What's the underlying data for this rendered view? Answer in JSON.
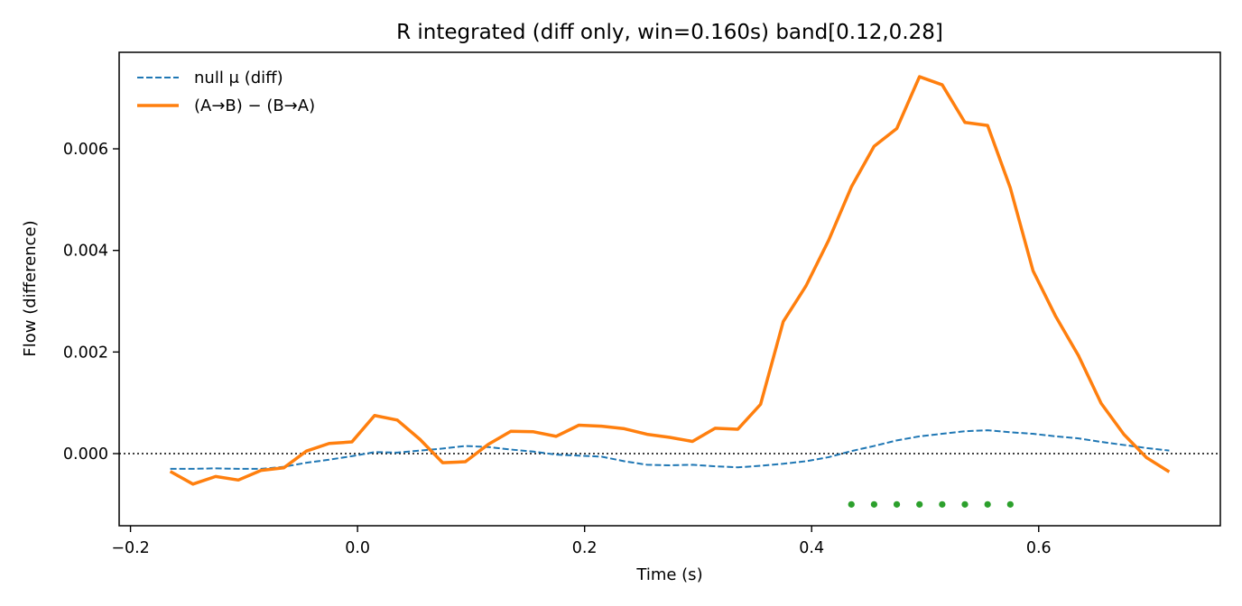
{
  "chart_data": {
    "type": "line",
    "title": "R integrated (diff only, win=0.160s)   band[0.12,0.28]",
    "xlabel": "Time (s)",
    "ylabel": "Flow (difference)",
    "xlim": [
      -0.21,
      0.76
    ],
    "ylim": [
      -0.00142,
      0.0079
    ],
    "x_ticks": [
      -0.2,
      0.0,
      0.2,
      0.4,
      0.6
    ],
    "x_tick_labels": [
      "−0.2",
      "0.0",
      "0.2",
      "0.4",
      "0.6"
    ],
    "y_ticks": [
      0.0,
      0.002,
      0.004,
      0.006
    ],
    "y_tick_labels": [
      "0.000",
      "0.002",
      "0.004",
      "0.006"
    ],
    "grid": false,
    "legend_position": "top-left",
    "reference_line": {
      "y": 0.0,
      "style": "dotted",
      "color": "#000000"
    },
    "series": [
      {
        "name": "null μ (diff)",
        "style": "dashed",
        "color": "#1f77b4",
        "x": [
          -0.165,
          -0.145,
          -0.125,
          -0.105,
          -0.085,
          -0.065,
          -0.045,
          -0.025,
          -0.005,
          0.015,
          0.035,
          0.055,
          0.075,
          0.095,
          0.115,
          0.135,
          0.155,
          0.175,
          0.195,
          0.215,
          0.235,
          0.255,
          0.275,
          0.295,
          0.315,
          0.335,
          0.355,
          0.375,
          0.395,
          0.415,
          0.435,
          0.455,
          0.475,
          0.495,
          0.515,
          0.535,
          0.555,
          0.575,
          0.595,
          0.615,
          0.635,
          0.655,
          0.675,
          0.695,
          0.715
        ],
        "y": [
          -0.0003,
          -0.0003,
          -0.00029,
          -0.0003,
          -0.0003,
          -0.00026,
          -0.00018,
          -0.00012,
          -5e-05,
          3e-05,
          2e-05,
          6e-05,
          0.0001,
          0.00015,
          0.00013,
          8e-05,
          4e-05,
          -2e-05,
          -4e-05,
          -6e-05,
          -0.00015,
          -0.00022,
          -0.00023,
          -0.00022,
          -0.00025,
          -0.00027,
          -0.00024,
          -0.0002,
          -0.00015,
          -7e-05,
          5e-05,
          0.00015,
          0.00026,
          0.00034,
          0.00039,
          0.00044,
          0.00046,
          0.00042,
          0.00039,
          0.00034,
          0.0003,
          0.00023,
          0.00017,
          0.00011,
          6e-05
        ]
      },
      {
        "name": "(A→B) − (B→A)",
        "style": "solid",
        "color": "#ff7f0e",
        "x": [
          -0.165,
          -0.145,
          -0.125,
          -0.105,
          -0.085,
          -0.065,
          -0.045,
          -0.025,
          -0.005,
          0.015,
          0.035,
          0.055,
          0.075,
          0.095,
          0.115,
          0.135,
          0.155,
          0.175,
          0.195,
          0.215,
          0.235,
          0.255,
          0.275,
          0.295,
          0.315,
          0.335,
          0.355,
          0.375,
          0.395,
          0.415,
          0.435,
          0.455,
          0.475,
          0.495,
          0.515,
          0.535,
          0.555,
          0.575,
          0.595,
          0.615,
          0.635,
          0.655,
          0.675,
          0.695,
          0.715
        ],
        "y": [
          -0.00035,
          -0.0006,
          -0.00045,
          -0.00052,
          -0.00033,
          -0.00028,
          5e-05,
          0.0002,
          0.00023,
          0.00075,
          0.00066,
          0.00028,
          -0.00018,
          -0.00016,
          0.00018,
          0.00044,
          0.00043,
          0.00034,
          0.00056,
          0.00054,
          0.00049,
          0.00038,
          0.00032,
          0.00024,
          0.0005,
          0.00048,
          0.00097,
          0.0026,
          0.0033,
          0.0042,
          0.00525,
          0.00605,
          0.0064,
          0.00742,
          0.00726,
          0.00652,
          0.00646,
          0.00523,
          0.0036,
          0.0027,
          0.00193,
          0.00099,
          0.00038,
          -8e-05,
          -0.00036
        ]
      },
      {
        "type": "scatter",
        "color": "#2ca02c",
        "x": [
          0.435,
          0.455,
          0.475,
          0.495,
          0.515,
          0.535,
          0.555,
          0.575
        ],
        "y": [
          -0.001,
          -0.001,
          -0.001,
          -0.001,
          -0.001,
          -0.001,
          -0.001,
          -0.001
        ]
      }
    ]
  }
}
